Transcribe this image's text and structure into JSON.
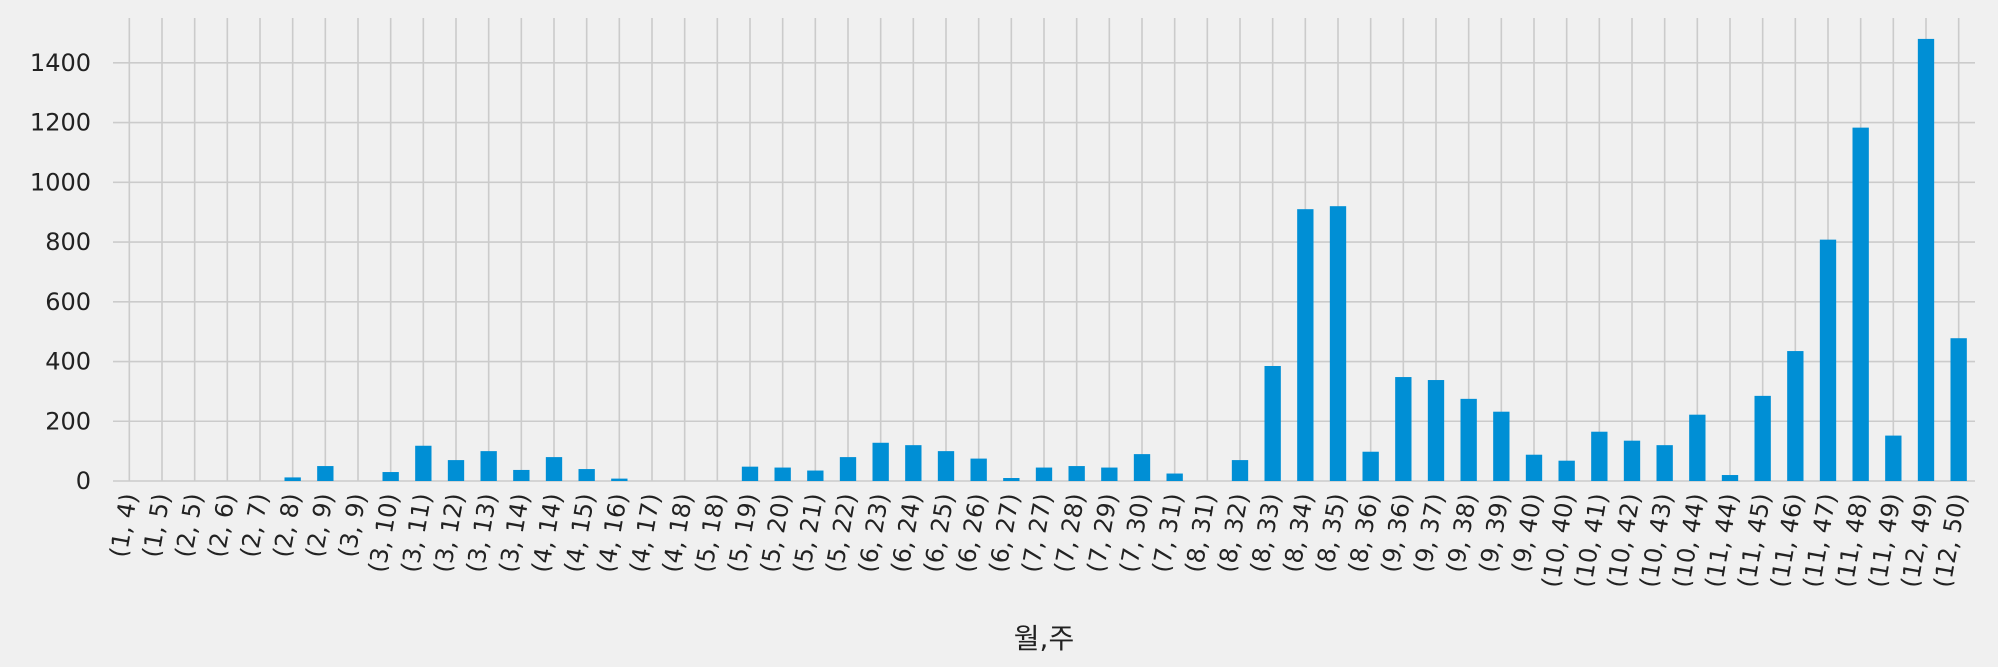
{
  "chart_data": {
    "type": "bar",
    "xlabel": "월,주",
    "ylabel": "",
    "ylim": [
      0,
      1550
    ],
    "yticks": [
      0,
      200,
      400,
      600,
      800,
      1000,
      1200,
      1400
    ],
    "grid": true,
    "color": "#008fd5",
    "background": "#f0f0f0",
    "categories": [
      "(1, 4)",
      "(1, 5)",
      "(2, 5)",
      "(2, 6)",
      "(2, 7)",
      "(2, 8)",
      "(2, 9)",
      "(3, 9)",
      "(3, 10)",
      "(3, 11)",
      "(3, 12)",
      "(3, 13)",
      "(3, 14)",
      "(4, 14)",
      "(4, 15)",
      "(4, 16)",
      "(4, 17)",
      "(4, 18)",
      "(5, 18)",
      "(5, 19)",
      "(5, 20)",
      "(5, 21)",
      "(5, 22)",
      "(6, 23)",
      "(6, 24)",
      "(6, 25)",
      "(6, 26)",
      "(6, 27)",
      "(7, 27)",
      "(7, 28)",
      "(7, 29)",
      "(7, 30)",
      "(7, 31)",
      "(8, 31)",
      "(8, 32)",
      "(8, 33)",
      "(8, 34)",
      "(8, 35)",
      "(8, 36)",
      "(9, 36)",
      "(9, 37)",
      "(9, 38)",
      "(9, 39)",
      "(9, 40)",
      "(10, 40)",
      "(10, 41)",
      "(10, 42)",
      "(10, 43)",
      "(10, 44)",
      "(11, 44)",
      "(11, 45)",
      "(11, 46)",
      "(11, 47)",
      "(11, 48)",
      "(11, 49)",
      "(12, 49)",
      "(12, 50)"
    ],
    "values": [
      0,
      0,
      0,
      0,
      0,
      12,
      50,
      0,
      30,
      118,
      70,
      100,
      37,
      80,
      40,
      8,
      0,
      0,
      0,
      48,
      45,
      35,
      80,
      128,
      120,
      100,
      75,
      10,
      45,
      50,
      45,
      90,
      25,
      0,
      70,
      385,
      910,
      920,
      98,
      348,
      338,
      275,
      232,
      88,
      68,
      165,
      135,
      120,
      222,
      20,
      285,
      435,
      808,
      1183,
      152,
      1480,
      478
    ]
  }
}
